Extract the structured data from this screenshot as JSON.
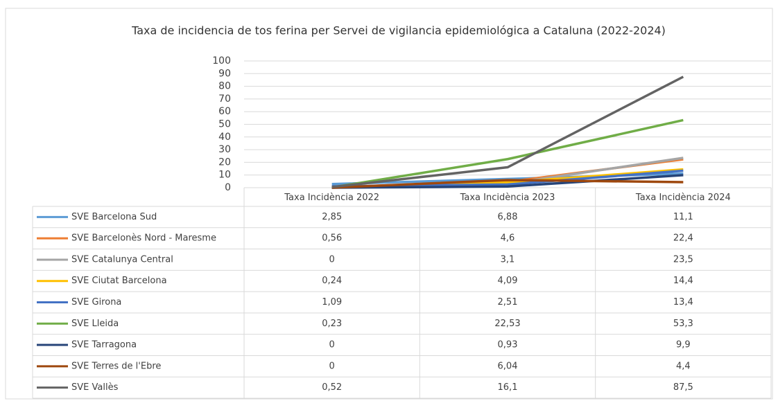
{
  "chart_data": {
    "type": "line",
    "title": "Taxa de incidencia de tos ferina per Servei de vigilancia epidemiológica a Cataluna (2022-2024)",
    "categories": [
      "Taxa Incidència 2022",
      "Taxa Incidència 2023",
      "Taxa Incidència 2024"
    ],
    "series": [
      {
        "name": "SVE Barcelona Sud",
        "color": "#5b9bd5",
        "values": [
          2.85,
          6.88,
          11.1
        ],
        "value_labels": [
          "2,85",
          "6,88",
          "11,1"
        ]
      },
      {
        "name": "SVE Barcelonès Nord - Maresme",
        "color": "#ed7d31",
        "values": [
          0.56,
          4.6,
          22.4
        ],
        "value_labels": [
          "0,56",
          "4,6",
          "22,4"
        ]
      },
      {
        "name": "SVE Catalunya Central",
        "color": "#a5a5a5",
        "values": [
          0,
          3.1,
          23.5
        ],
        "value_labels": [
          "0",
          "3,1",
          "23,5"
        ]
      },
      {
        "name": "SVE Ciutat Barcelona",
        "color": "#ffc000",
        "values": [
          0.24,
          4.09,
          14.4
        ],
        "value_labels": [
          "0,24",
          "4,09",
          "14,4"
        ]
      },
      {
        "name": "SVE Girona",
        "color": "#4472c4",
        "values": [
          1.09,
          2.51,
          13.4
        ],
        "value_labels": [
          "1,09",
          "2,51",
          "13,4"
        ]
      },
      {
        "name": "SVE Lleida",
        "color": "#70ad47",
        "values": [
          0.23,
          22.53,
          53.3
        ],
        "value_labels": [
          "0,23",
          "22,53",
          "53,3"
        ]
      },
      {
        "name": "SVE Tarragona",
        "color": "#264478",
        "values": [
          0,
          0.93,
          9.9
        ],
        "value_labels": [
          "0",
          "0,93",
          "9,9"
        ]
      },
      {
        "name": "SVE Terres de l'Ebre",
        "color": "#9e480e",
        "values": [
          0,
          6.04,
          4.4
        ],
        "value_labels": [
          "0",
          "6,04",
          "4,4"
        ]
      },
      {
        "name": "SVE Vallès",
        "color": "#636363",
        "values": [
          0.52,
          16.1,
          87.5
        ],
        "value_labels": [
          "0,52",
          "16,1",
          "87,5"
        ]
      }
    ],
    "ylim": [
      0,
      100
    ],
    "yticks": [
      0,
      10,
      20,
      30,
      40,
      50,
      60,
      70,
      80,
      90,
      100
    ],
    "grid": true
  }
}
